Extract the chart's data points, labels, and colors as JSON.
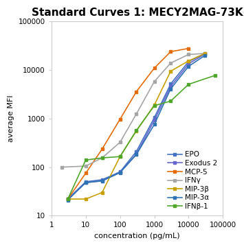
{
  "title": "Standard Curves 1: MECY2MAG-73K",
  "xlabel": "concentration (pg/mL)",
  "ylabel": "average MFI",
  "xlim": [
    1,
    100000
  ],
  "ylim": [
    10,
    100000
  ],
  "series": [
    {
      "name": "EPO",
      "color": "#4472C4",
      "marker": "s",
      "x": [
        3,
        10,
        30,
        100,
        300,
        1000,
        3000,
        10000,
        30000
      ],
      "y": [
        22,
        50,
        55,
        80,
        210,
        1050,
        5200,
        15000,
        22000
      ]
    },
    {
      "name": "Exodus 2",
      "color": "#6666CC",
      "marker": "s",
      "x": [
        3,
        10,
        30,
        100,
        300,
        1000,
        3000,
        10000,
        30000
      ],
      "y": [
        22,
        48,
        52,
        78,
        185,
        920,
        4600,
        13500,
        21500
      ]
    },
    {
      "name": "MCP-5",
      "color": "#E36C09",
      "marker": "s",
      "x": [
        3,
        10,
        30,
        100,
        300,
        1000,
        3000,
        10000
      ],
      "y": [
        22,
        75,
        235,
        970,
        3600,
        11000,
        24000,
        28000
      ]
    },
    {
      "name": "IFNγ",
      "color": "#A5A5A5",
      "marker": "s",
      "x": [
        2,
        10,
        30,
        100,
        300,
        1000,
        3000,
        10000,
        30000
      ],
      "y": [
        100,
        105,
        155,
        325,
        1250,
        5800,
        14000,
        21000,
        22000
      ]
    },
    {
      "name": "MIP-3β",
      "color": "#C8A000",
      "marker": "s",
      "x": [
        3,
        10,
        30,
        100,
        300,
        1000,
        3000,
        10000,
        30000
      ],
      "y": [
        22,
        22,
        30,
        165,
        560,
        1900,
        9500,
        15500,
        22000
      ]
    },
    {
      "name": "MIP-3α",
      "color": "#2E74B5",
      "marker": "s",
      "x": [
        3,
        10,
        30,
        100,
        300,
        1000,
        3000,
        10000,
        30000
      ],
      "y": [
        21,
        48,
        52,
        77,
        182,
        760,
        4100,
        12000,
        20000
      ]
    },
    {
      "name": "IFNβ-1",
      "color": "#4EA72A",
      "marker": "s",
      "x": [
        3,
        10,
        30,
        100,
        300,
        1000,
        3000,
        10000,
        60000
      ],
      "y": [
        22,
        140,
        155,
        165,
        570,
        1850,
        2300,
        5100,
        7800
      ]
    }
  ],
  "background_color": "#FFFFFF",
  "plot_bg_color": "#FFFFFF",
  "border_color": "#CCCCCC",
  "title_fontsize": 11,
  "label_fontsize": 8,
  "legend_fontsize": 7.5,
  "tick_fontsize": 7.5
}
